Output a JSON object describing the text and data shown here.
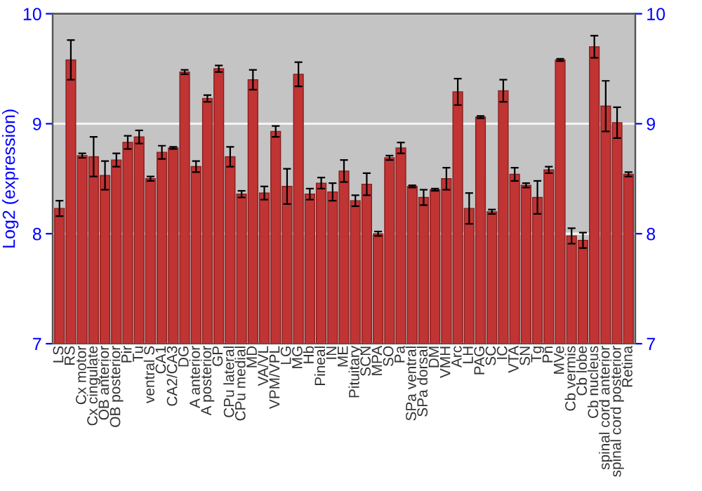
{
  "chart_data": {
    "type": "bar",
    "ylabel": "Log2 (expression)",
    "categories": [
      "LS",
      "RS",
      "Cx motor",
      "Cx cingulate",
      "OB anterior",
      "OB posterior",
      "Pir",
      "Tu",
      "ventral S",
      "CA1",
      "CA2/CA3",
      "DG",
      "A anterior",
      "A posterior",
      "GP",
      "CPu lateral",
      "CPu medial",
      "MD",
      "VA/VL",
      "VPM/VPL",
      "LG",
      "MG",
      "Hb",
      "Pineal",
      "IN",
      "ME",
      "Pituitary",
      "SCN",
      "MPA",
      "SO",
      "Pa",
      "SPa ventral",
      "SPa dorsal",
      "DM",
      "VMH",
      "Arc",
      "LH",
      "PAG",
      "SC",
      "IC",
      "VTA",
      "SN",
      "Tg",
      "Pn",
      "MVe",
      "Cb vermis",
      "Cb lobe",
      "Cb nucleus",
      "spinal cord anterior",
      "spinal cord posterior",
      "Retina"
    ],
    "values": [
      8.23,
      9.58,
      8.71,
      8.7,
      8.53,
      8.67,
      8.83,
      8.88,
      8.5,
      8.74,
      8.78,
      9.47,
      8.61,
      9.23,
      9.5,
      8.7,
      8.36,
      9.4,
      8.37,
      8.93,
      8.43,
      9.45,
      8.36,
      8.46,
      8.38,
      8.57,
      8.3,
      8.45,
      8.0,
      8.69,
      8.78,
      8.43,
      8.33,
      8.4,
      8.5,
      9.29,
      8.23,
      9.06,
      8.2,
      9.3,
      8.54,
      8.44,
      8.33,
      8.58,
      9.58,
      7.98,
      7.94,
      9.7,
      9.16,
      9.01,
      8.54
    ],
    "errors": [
      0.07,
      0.18,
      0.02,
      0.18,
      0.13,
      0.06,
      0.06,
      0.06,
      0.02,
      0.06,
      0.01,
      0.02,
      0.05,
      0.03,
      0.03,
      0.09,
      0.03,
      0.09,
      0.06,
      0.05,
      0.16,
      0.11,
      0.05,
      0.05,
      0.08,
      0.1,
      0.05,
      0.1,
      0.02,
      0.02,
      0.05,
      0.01,
      0.07,
      0.01,
      0.1,
      0.12,
      0.14,
      0.01,
      0.02,
      0.1,
      0.06,
      0.02,
      0.15,
      0.03,
      0.01,
      0.07,
      0.07,
      0.1,
      0.23,
      0.14,
      0.02
    ],
    "color": "#c03434",
    "ylim": [
      7,
      10
    ],
    "yticks": [
      7,
      8,
      9,
      10
    ],
    "y2lim": [
      7,
      10
    ],
    "y2ticks": [
      7,
      8,
      9,
      10
    ],
    "grid": "y"
  }
}
